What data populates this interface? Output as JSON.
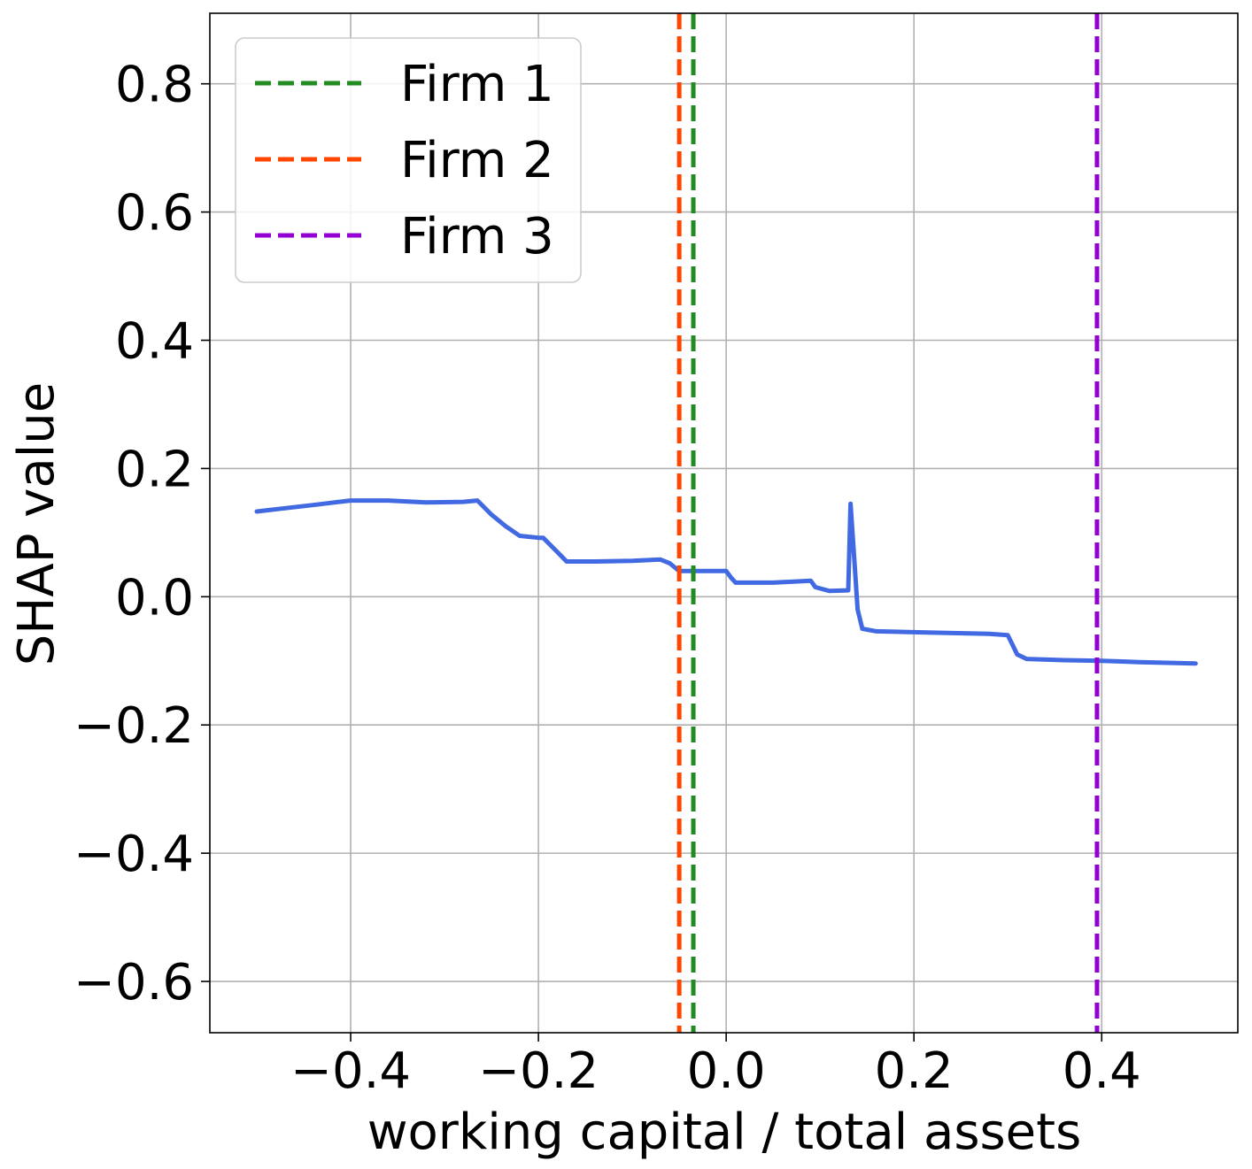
{
  "chart_data": {
    "type": "line",
    "title": "",
    "xlabel": "working capital / total assets",
    "ylabel": "SHAP value",
    "xlim": [
      -0.55,
      0.545
    ],
    "ylim": [
      -0.68,
      0.91
    ],
    "x_ticks": [
      -0.4,
      -0.2,
      0.0,
      0.2,
      0.4
    ],
    "x_tick_labels": [
      "−0.4",
      "−0.2",
      "0.0",
      "0.2",
      "0.4"
    ],
    "y_ticks": [
      0.8,
      0.6,
      0.4,
      0.2,
      0.0,
      -0.2,
      -0.4,
      -0.6
    ],
    "y_tick_labels": [
      "0.8",
      "0.6",
      "0.4",
      "0.2",
      "0.0",
      "−0.2",
      "−0.4",
      "−0.6"
    ],
    "grid": true,
    "legend_position": "top-left",
    "series": [
      {
        "color": "#4169e1",
        "x": [
          -0.5,
          -0.47,
          -0.44,
          -0.4,
          -0.36,
          -0.32,
          -0.28,
          -0.265,
          -0.25,
          -0.235,
          -0.22,
          -0.2,
          -0.195,
          -0.18,
          -0.17,
          -0.14,
          -0.1,
          -0.07,
          -0.06,
          -0.05,
          -0.04,
          -0.02,
          0.0,
          0.005,
          0.01,
          0.05,
          0.09,
          0.095,
          0.11,
          0.13,
          0.1325,
          0.135,
          0.14,
          0.145,
          0.16,
          0.22,
          0.28,
          0.3,
          0.31,
          0.32,
          0.36,
          0.4,
          0.44,
          0.5
        ],
        "y": [
          0.133,
          0.138,
          0.143,
          0.15,
          0.15,
          0.147,
          0.148,
          0.15,
          0.128,
          0.11,
          0.095,
          0.092,
          0.092,
          0.07,
          0.055,
          0.055,
          0.056,
          0.058,
          0.052,
          0.04,
          0.04,
          0.04,
          0.04,
          0.03,
          0.022,
          0.022,
          0.025,
          0.015,
          0.009,
          0.01,
          0.145,
          0.09,
          -0.02,
          -0.05,
          -0.054,
          -0.056,
          -0.058,
          -0.06,
          -0.09,
          -0.097,
          -0.099,
          -0.1,
          -0.102,
          -0.104
        ]
      }
    ],
    "vlines": [
      {
        "name": "Firm 1",
        "x": -0.035,
        "color": "#228b22"
      },
      {
        "name": "Firm 2",
        "x": -0.05,
        "color": "#ff4500"
      },
      {
        "name": "Firm 3",
        "x": 0.395,
        "color": "#9400d3"
      }
    ]
  }
}
